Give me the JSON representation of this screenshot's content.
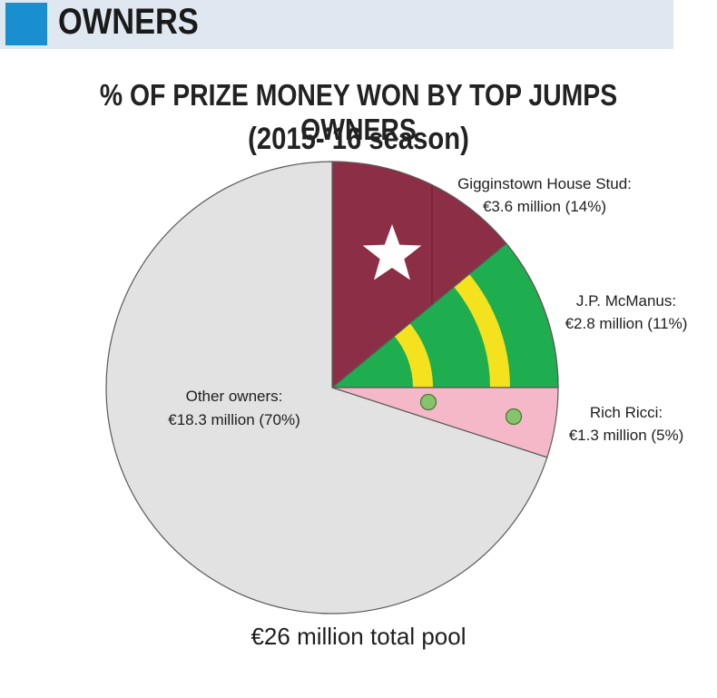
{
  "header": {
    "section_title": "OWNERS",
    "accent_color": "#1a8fd0"
  },
  "chart_data": {
    "type": "pie",
    "title": "% OF PRIZE MONEY WON BY TOP JUMPS OWNERS",
    "subtitle": "(2015-’16 season)",
    "total_label": "€26 million total pool",
    "slices": [
      {
        "name": "Gigginstown House Stud",
        "label_line1": "Gigginstown House Stud:",
        "label_line2": "€3.6 million (14%)",
        "value_millions": 3.6,
        "percent": 14,
        "color": "#8c2e45",
        "pattern": "star"
      },
      {
        "name": "J.P. McManus",
        "label_line1": "J.P. McManus:",
        "label_line2": "€2.8 million (11%)",
        "value_millions": 2.8,
        "percent": 11,
        "color": "#1fae4f",
        "pattern": "yellow-hoops"
      },
      {
        "name": "Rich Ricci",
        "label_line1": "Rich Ricci:",
        "label_line2": "€1.3 million (5%)",
        "value_millions": 1.3,
        "percent": 5,
        "color": "#f5b8c8",
        "pattern": "green-spots"
      },
      {
        "name": "Other owners",
        "label_line1": "Other owners:",
        "label_line2": "€18.3 million (70%)",
        "value_millions": 18.3,
        "percent": 70,
        "color": "#e2e2e2",
        "pattern": "none"
      }
    ]
  }
}
